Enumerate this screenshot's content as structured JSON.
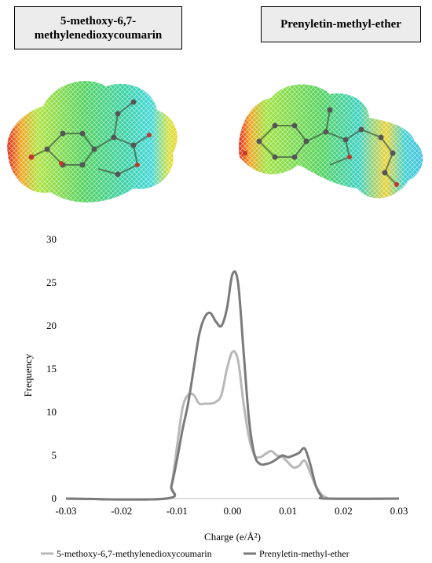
{
  "molecules": {
    "left_label": "5-methoxy-6,7-methylenedioxycoumarin",
    "right_label": "Prenyletin-methyl-ether"
  },
  "colors": {
    "series_light": "#b8b8b8",
    "series_dark": "#7a7a7a",
    "axis": "#bdbdbd",
    "surface_mesh": "green-cyan-red gradient"
  },
  "chart_data": {
    "type": "line",
    "title": "",
    "xlabel": "Charge (e/Å²)",
    "ylabel": "Frequency",
    "xlim": [
      -0.03,
      0.03
    ],
    "ylim": [
      0,
      30
    ],
    "xticks": [
      "-0.03",
      "-0.02",
      "-0.01",
      "0.00",
      "0.01",
      "0.02",
      "0.03"
    ],
    "yticks": [
      "0",
      "5",
      "10",
      "15",
      "20",
      "25",
      "30"
    ],
    "grid": false,
    "legend": "bottom",
    "series": [
      {
        "name": "5-methoxy-6,7-methylenedioxycoumarin",
        "color": "#b8b8b8",
        "x": [
          -0.012,
          -0.011,
          -0.01,
          -0.009,
          -0.008,
          -0.007,
          -0.006,
          -0.005,
          -0.004,
          -0.003,
          -0.002,
          -0.001,
          0.0,
          0.001,
          0.002,
          0.003,
          0.004,
          0.005,
          0.006,
          0.007,
          0.008,
          0.009,
          0.01,
          0.011,
          0.012,
          0.013,
          0.014,
          0.015,
          0.016,
          0.017,
          0.018
        ],
        "values": [
          0,
          1.5,
          6,
          10.5,
          12,
          12,
          11,
          11,
          11,
          11.2,
          12,
          15,
          17,
          16,
          11,
          7,
          5,
          4.8,
          5.2,
          5.5,
          5,
          4.8,
          4.2,
          3.6,
          3.8,
          4.4,
          3,
          1.5,
          0.5,
          0.1,
          0
        ]
      },
      {
        "name": "Prenyletin-methyl-ether",
        "color": "#7a7a7a",
        "x": [
          -0.012,
          -0.011,
          -0.01,
          -0.009,
          -0.008,
          -0.007,
          -0.006,
          -0.005,
          -0.004,
          -0.003,
          -0.002,
          -0.001,
          0.0,
          0.001,
          0.002,
          0.003,
          0.004,
          0.005,
          0.006,
          0.007,
          0.008,
          0.009,
          0.01,
          0.011,
          0.012,
          0.013,
          0.014,
          0.015,
          0.016,
          0.017
        ],
        "values": [
          0,
          1.5,
          4.5,
          8,
          11,
          15,
          19,
          21,
          21.5,
          20.5,
          20,
          22,
          26,
          25,
          17,
          9,
          5,
          4,
          4,
          4.2,
          4.6,
          5,
          4.8,
          5,
          5.3,
          5.8,
          4,
          1.5,
          0.3,
          0
        ]
      }
    ]
  }
}
